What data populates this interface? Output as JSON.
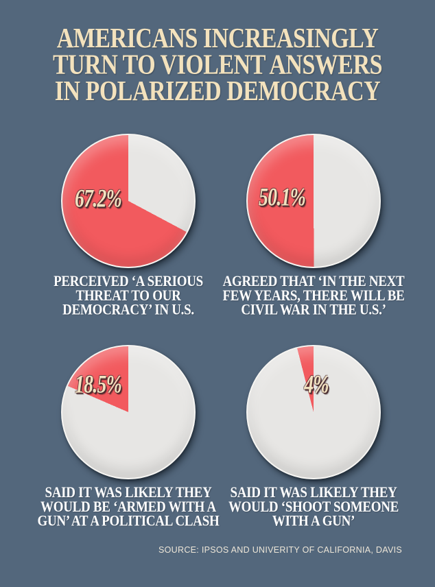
{
  "header": {
    "title": "AMERICANS INCREASINGLY\nTURN TO VIOLENT ANSWERS\nIN POLARIZED DEMOCRACY"
  },
  "footer": {
    "source": "SOURCE: IPSOS AND UNIVERITY OF CALIFORNIA, DAVIS"
  },
  "colors": {
    "background": "#53677C",
    "accent_red": "#F25A5E",
    "pie_gray": "#E7E6E4",
    "title_cream": "#F3E2BD",
    "percent_cream": "#F2E2C0",
    "caption_white": "#FDFDFD"
  },
  "chart_data": [
    {
      "type": "pie",
      "percent_label": "67.2%",
      "caption": "PERCEIVED ‘A SERIOUS\nTHREAT TO OUR\nDEMOCRACY’ IN U.S.",
      "slices": [
        {
          "name": "highlight",
          "value": 67.2,
          "color": "#F25A5E"
        },
        {
          "name": "remainder",
          "value": 32.8,
          "color": "#E7E6E4"
        }
      ],
      "layout": {
        "highlight_ends_at": "12-oclock",
        "direction": "counterclockwise"
      }
    },
    {
      "type": "pie",
      "percent_label": "50.1%",
      "caption": "AGREED THAT ‘IN THE NEXT\nFEW YEARS, THERE WILL BE\nCIVIL WAR IN THE U.S.’",
      "slices": [
        {
          "name": "highlight",
          "value": 50.1,
          "color": "#F25A5E"
        },
        {
          "name": "remainder",
          "value": 49.9,
          "color": "#E7E6E4"
        }
      ],
      "layout": {
        "highlight_ends_at": "12-oclock",
        "direction": "counterclockwise"
      }
    },
    {
      "type": "pie",
      "percent_label": "18.5%",
      "caption": "SAID IT WAS LIKELY THEY\nWOULD BE ‘ARMED WITH A\nGUN’ AT A POLITICAL CLASH",
      "slices": [
        {
          "name": "highlight",
          "value": 18.5,
          "color": "#F25A5E"
        },
        {
          "name": "remainder",
          "value": 81.5,
          "color": "#E7E6E4"
        }
      ],
      "layout": {
        "highlight_ends_at": "12-oclock",
        "direction": "counterclockwise"
      }
    },
    {
      "type": "pie",
      "percent_label": "4%",
      "caption": "SAID IT WAS LIKELY THEY\nWOULD ‘SHOOT SOMEONE\nWITH A GUN’",
      "slices": [
        {
          "name": "highlight",
          "value": 4,
          "color": "#F25A5E"
        },
        {
          "name": "remainder",
          "value": 96,
          "color": "#E7E6E4"
        }
      ],
      "layout": {
        "highlight_ends_at": "12-oclock",
        "direction": "counterclockwise"
      }
    }
  ]
}
